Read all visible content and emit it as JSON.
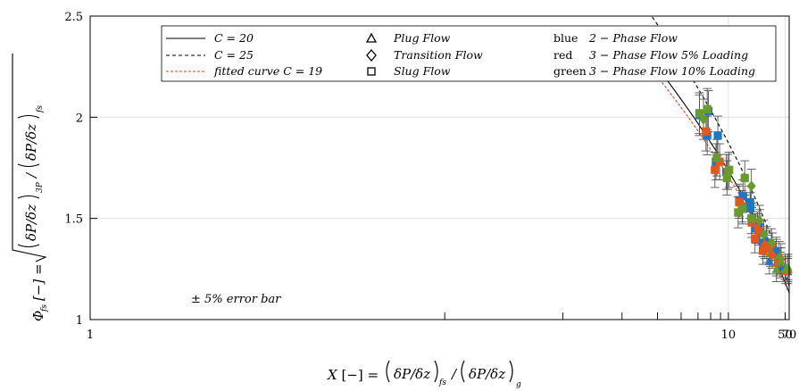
{
  "chart_data": {
    "type": "scatter",
    "x_scale": "reciprocal",
    "xlabel": "X [−] = (δP/δz)_fs / (δP/δz)_g",
    "ylabel": "Φ_fs [−] = √((δP/δz)_3P / (δP/δz)_fs)",
    "x_ticks": [
      1,
      10,
      50,
      70
    ],
    "y_ticks": [
      1,
      1.5,
      2,
      2.5
    ],
    "xlim": [
      1,
      70
    ],
    "ylim": [
      1,
      2.5
    ],
    "grid": true,
    "legend_position": "top",
    "annotation": "± 5% error bar",
    "error_bar_fraction": 0.05,
    "curves": [
      {
        "label": "C = 20",
        "C": 20,
        "style": "solid",
        "color": "#000000"
      },
      {
        "label": "C = 25",
        "C": 25,
        "style": "dashed",
        "color": "#000000"
      },
      {
        "label": "fitted curve C = 19",
        "C": 19,
        "style": "dashed",
        "color": "#e03a2b"
      }
    ],
    "marker_legend": [
      {
        "label": "Plug Flow",
        "marker": "triangle"
      },
      {
        "label": "Transition Flow",
        "marker": "diamond"
      },
      {
        "label": "Slug Flow",
        "marker": "square"
      }
    ],
    "color_legend": [
      {
        "color_name": "blue",
        "label": "2 − Phase Flow",
        "color": "#1f77c4"
      },
      {
        "color_name": "red",
        "label": "3 − Phase Flow 5% Loading",
        "color": "#e2571e"
      },
      {
        "color_name": "green",
        "label": "3 − Phase Flow 10% Loading",
        "color": "#6a9a2e"
      }
    ],
    "series": [
      {
        "marker": "square",
        "color": "blue",
        "points": [
          [
            7.1,
            2.01
          ],
          [
            7.7,
            1.91
          ],
          [
            7.8,
            2.03
          ],
          [
            8.5,
            1.78
          ],
          [
            8.7,
            1.91
          ],
          [
            9.7,
            1.73
          ],
          [
            11.8,
            1.59
          ],
          [
            12.6,
            1.61
          ],
          [
            14.5,
            1.55
          ],
          [
            14.4,
            1.58
          ],
          [
            16.3,
            1.45
          ],
          [
            16.9,
            1.46
          ],
          [
            19.6,
            1.38
          ],
          [
            21.8,
            1.37
          ],
          [
            26.2,
            1.36
          ]
        ]
      },
      {
        "marker": "square",
        "color": "red",
        "points": [
          [
            7.6,
            1.93
          ],
          [
            8.4,
            1.74
          ],
          [
            8.9,
            1.78
          ],
          [
            9.9,
            1.73
          ],
          [
            11.8,
            1.58
          ],
          [
            12.4,
            1.56
          ],
          [
            14.9,
            1.48
          ],
          [
            16.0,
            1.4
          ],
          [
            17.5,
            1.44
          ],
          [
            19.5,
            1.34
          ],
          [
            21.8,
            1.35
          ],
          [
            25.8,
            1.36
          ],
          [
            33.2,
            1.29
          ]
        ]
      },
      {
        "marker": "square",
        "color": "green",
        "points": [
          [
            7.1,
            2.02
          ],
          [
            7.7,
            2.04
          ],
          [
            8.6,
            1.8
          ],
          [
            9.8,
            1.7
          ],
          [
            10.1,
            1.74
          ],
          [
            11.6,
            1.53
          ],
          [
            12.5,
            1.55
          ],
          [
            13.0,
            1.7
          ],
          [
            14.8,
            1.5
          ]
        ]
      },
      {
        "marker": "triangle",
        "color": "blue",
        "points": [
          [
            23.7,
            1.29
          ],
          [
            30.9,
            1.33
          ],
          [
            35.8,
            1.29
          ],
          [
            37.3,
            1.27
          ],
          [
            50.0,
            1.26
          ],
          [
            61.0,
            1.24
          ]
        ]
      },
      {
        "marker": "triangle",
        "color": "red",
        "points": [
          [
            38.6,
            1.31
          ],
          [
            52.3,
            1.24
          ],
          [
            61.7,
            1.25
          ],
          [
            31.5,
            1.28
          ]
        ]
      },
      {
        "marker": "triangle",
        "color": "green",
        "points": [
          [
            24.7,
            1.33
          ],
          [
            31.0,
            1.25
          ],
          [
            35.1,
            1.32
          ],
          [
            38.8,
            1.29
          ],
          [
            52.0,
            1.25
          ],
          [
            62.3,
            1.26
          ]
        ]
      },
      {
        "marker": "diamond",
        "color": "blue",
        "points": [
          [
            17.9,
            1.47
          ],
          [
            21.6,
            1.39
          ],
          [
            30.7,
            1.34
          ]
        ]
      },
      {
        "marker": "diamond",
        "color": "red",
        "points": [
          [
            17.0,
            1.45
          ],
          [
            20.6,
            1.37
          ],
          [
            26.1,
            1.32
          ]
        ]
      },
      {
        "marker": "diamond",
        "color": "green",
        "points": [
          [
            7.4,
            1.99
          ],
          [
            14.8,
            1.66
          ],
          [
            17.8,
            1.49
          ],
          [
            20.0,
            1.42
          ],
          [
            25.5,
            1.38
          ]
        ]
      }
    ]
  }
}
